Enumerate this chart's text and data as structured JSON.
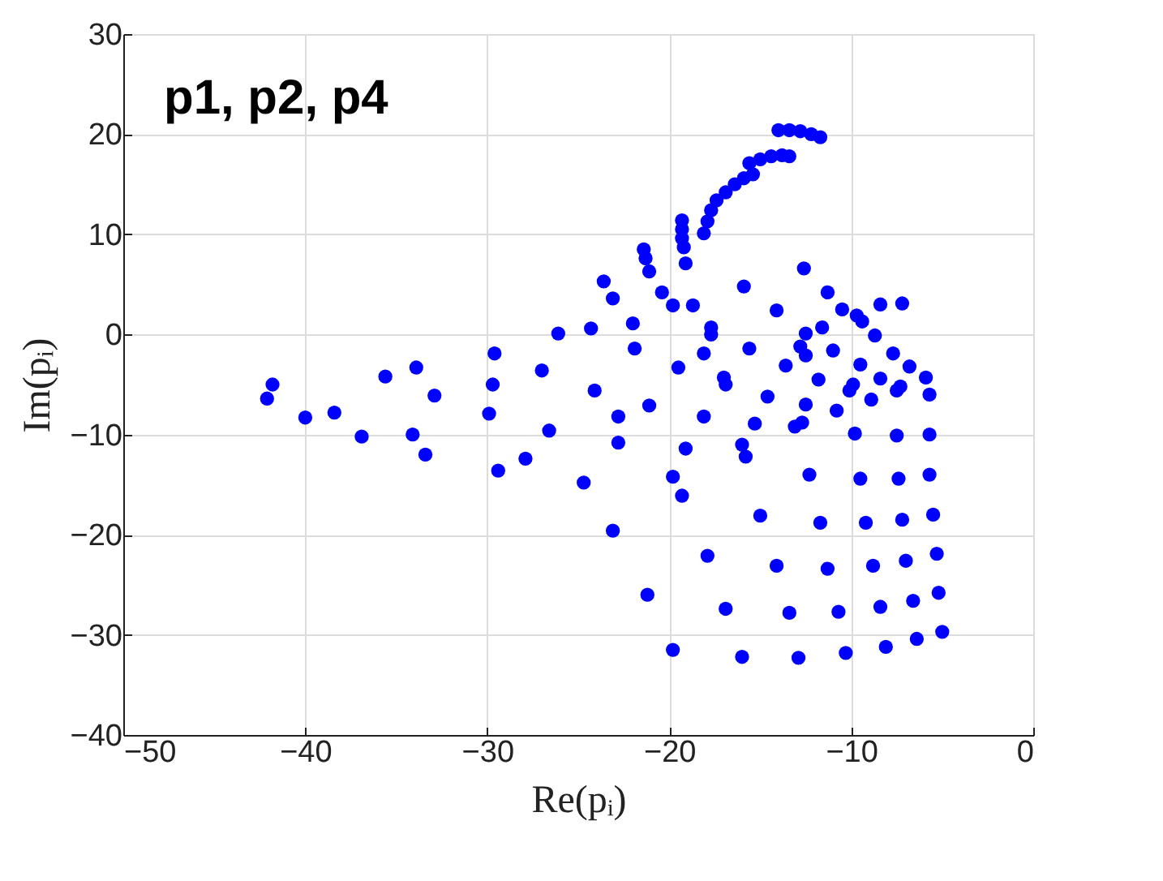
{
  "chart_data": {
    "type": "scatter",
    "xlabel": "Re(pᵢ)",
    "ylabel": "Im(pᵢ)",
    "annotations": [
      "p1, p2, p4"
    ],
    "xlim": [
      -50,
      0
    ],
    "xticks": [
      -50,
      -40,
      -30,
      -20,
      -10,
      0
    ],
    "ylim": [
      -40,
      30
    ],
    "yticks": [
      -40,
      -30,
      -20,
      -10,
      0,
      10,
      20,
      30
    ],
    "grid": true,
    "marker": "circle",
    "series": [
      {
        "color": "#0000ff",
        "x": [
          -42.1,
          -41.8,
          -40.0,
          -38.4,
          -36.9,
          -35.6,
          -34.1,
          -33.9,
          -32.9,
          -33.4,
          -29.6,
          -29.7,
          -29.9,
          -29.4,
          -27.9,
          -27.0,
          -26.6,
          -26.1,
          -24.7,
          -24.3,
          -24.1,
          -23.6,
          -23.1,
          -23.1,
          -22.8,
          -22.8,
          -22.0,
          -21.9,
          -21.1,
          -21.2,
          -21.4,
          -21.3,
          -21.1,
          -20.4,
          -19.8,
          -19.8,
          -19.8,
          -19.5,
          -19.3,
          -19.1,
          -18.7,
          -19.3,
          -19.3,
          -19.3,
          -19.2,
          -19.1,
          -18.1,
          -18.1,
          -18.1,
          -17.9,
          -17.7,
          -17.7,
          -17.9,
          -17.7,
          -17.4,
          -16.9,
          -16.4,
          -15.9,
          -15.4,
          -15.6,
          -15.0,
          -14.4,
          -13.8,
          -13.4,
          -14.0,
          -13.4,
          -12.8,
          -12.2,
          -11.7,
          -17.0,
          -16.9,
          -16.0,
          -15.8,
          -16.0,
          -16.9,
          -15.9,
          -15.6,
          -15.3,
          -15.0,
          -14.6,
          -14.1,
          -14.1,
          -13.6,
          -13.4,
          -13.1,
          -12.9,
          -12.7,
          -12.6,
          -12.5,
          -12.5,
          -12.8,
          -12.5,
          -12.3,
          -11.8,
          -11.7,
          -11.6,
          -11.3,
          -11.3,
          -11.0,
          -10.8,
          -10.7,
          -10.5,
          -10.3,
          -10.1,
          -9.9,
          -9.8,
          -9.7,
          -9.4,
          -9.5,
          -9.5,
          -9.2,
          -8.9,
          -8.8,
          -8.7,
          -8.4,
          -8.4,
          -8.4,
          -8.1,
          -7.7,
          -7.5,
          -7.3,
          -7.5,
          -7.4,
          -7.2,
          -7.2,
          -7.0,
          -6.6,
          -6.8,
          -6.4,
          -5.9,
          -5.7,
          -5.7,
          -5.7,
          -5.5,
          -5.3,
          -5.2,
          -5.0
        ],
        "values": [
          -6.4,
          -5.0,
          -8.3,
          -7.8,
          -10.2,
          -4.2,
          -10.0,
          -3.3,
          -6.1,
          -12.0,
          -1.9,
          -5.0,
          -7.9,
          -13.6,
          -12.4,
          -3.6,
          -9.6,
          0.1,
          -14.8,
          0.6,
          -5.6,
          5.3,
          3.6,
          -19.6,
          -8.2,
          -10.8,
          1.1,
          -1.4,
          -7.1,
          -26.0,
          8.5,
          7.6,
          6.3,
          4.2,
          2.9,
          -14.2,
          -31.5,
          -3.3,
          -16.1,
          -11.4,
          2.9,
          11.4,
          10.5,
          9.6,
          8.7,
          7.1,
          10.1,
          -1.9,
          -8.2,
          -22.1,
          0.7,
          0,
          11.3,
          12.4,
          13.4,
          14.2,
          15.0,
          15.6,
          16.0,
          17.1,
          17.5,
          17.8,
          17.9,
          17.8,
          20.4,
          20.4,
          20.3,
          20.0,
          19.7,
          -4.3,
          -5.0,
          -11.0,
          -12.2,
          -32.2,
          -27.4,
          4.8,
          -1.4,
          -8.9,
          -18.1,
          -6.2,
          2.4,
          -23.1,
          -3.1,
          -27.8,
          -9.2,
          -32.3,
          -8.8,
          6.6,
          -7.0,
          0.1,
          -1.2,
          -2.1,
          -14.0,
          -4.5,
          -18.8,
          0.7,
          4.2,
          -23.4,
          -1.6,
          -7.6,
          -27.7,
          2.5,
          -31.8,
          -5.6,
          -5.0,
          -9.9,
          1.9,
          1.3,
          -3.0,
          -14.4,
          -18.8,
          -6.5,
          -23.1,
          -0.1,
          3.0,
          -27.2,
          -4.4,
          -31.2,
          -1.9,
          -5.6,
          -5.2,
          -10.1,
          -14.4,
          3.1,
          -18.5,
          -22.6,
          -26.6,
          -3.2,
          -30.4,
          -4.3,
          -6.0,
          -10.0,
          -14.0,
          -18.0,
          -21.9,
          -25.8,
          -29.7
        ]
      }
    ]
  }
}
